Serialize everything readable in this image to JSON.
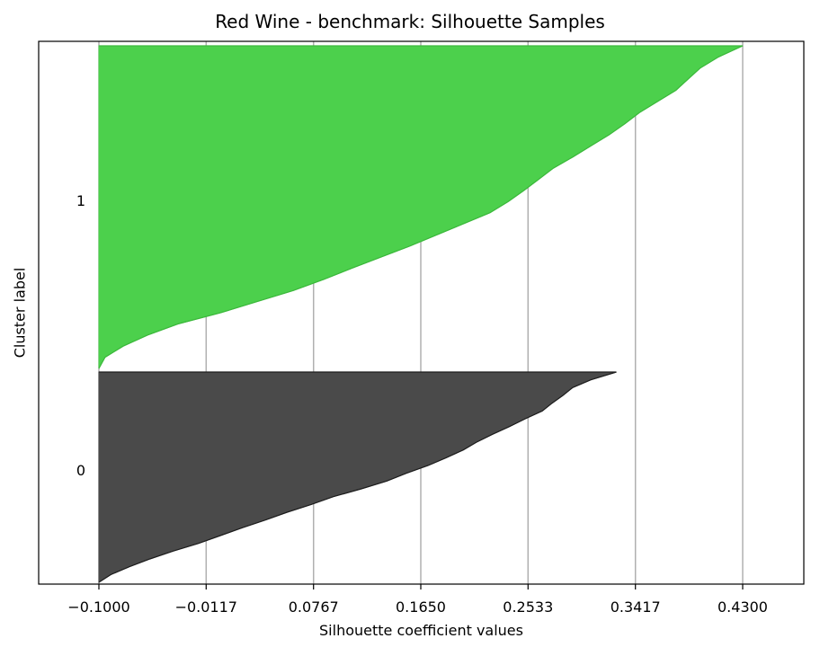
{
  "chart_data": {
    "type": "area",
    "title": "Red Wine - benchmark: Silhouette Samples",
    "xlabel": "Silhouette coefficient values",
    "ylabel": "Cluster label",
    "xlim": [
      -0.1,
      0.43
    ],
    "xticks": [
      "−0.1000",
      "−0.0117",
      "0.0767",
      "0.1650",
      "0.2533",
      "0.3417",
      "0.4300"
    ],
    "x_tick_values": [
      -0.1,
      -0.0117,
      0.0767,
      0.165,
      0.2533,
      0.3417,
      0.43
    ],
    "grid": "vertical",
    "clusters": [
      {
        "label": "0",
        "color": "#4a4a4a",
        "profile_descending": [
          0.326,
          0.305,
          0.29,
          0.282,
          0.273,
          0.265,
          0.251,
          0.238,
          0.224,
          0.211,
          0.2,
          0.186,
          0.171,
          0.153,
          0.137,
          0.116,
          0.093,
          0.075,
          0.055,
          0.037,
          0.018,
          0.0,
          -0.018,
          -0.039,
          -0.058,
          -0.075,
          -0.09,
          -0.1
        ]
      },
      {
        "label": "1",
        "color": "#4cd04c",
        "profile_descending": [
          0.43,
          0.41,
          0.395,
          0.385,
          0.375,
          0.36,
          0.345,
          0.333,
          0.32,
          0.305,
          0.29,
          0.274,
          0.262,
          0.25,
          0.237,
          0.222,
          0.2,
          0.178,
          0.156,
          0.132,
          0.108,
          0.085,
          0.06,
          0.03,
          0.0,
          -0.035,
          -0.06,
          -0.08,
          -0.095,
          -0.1
        ]
      }
    ]
  }
}
